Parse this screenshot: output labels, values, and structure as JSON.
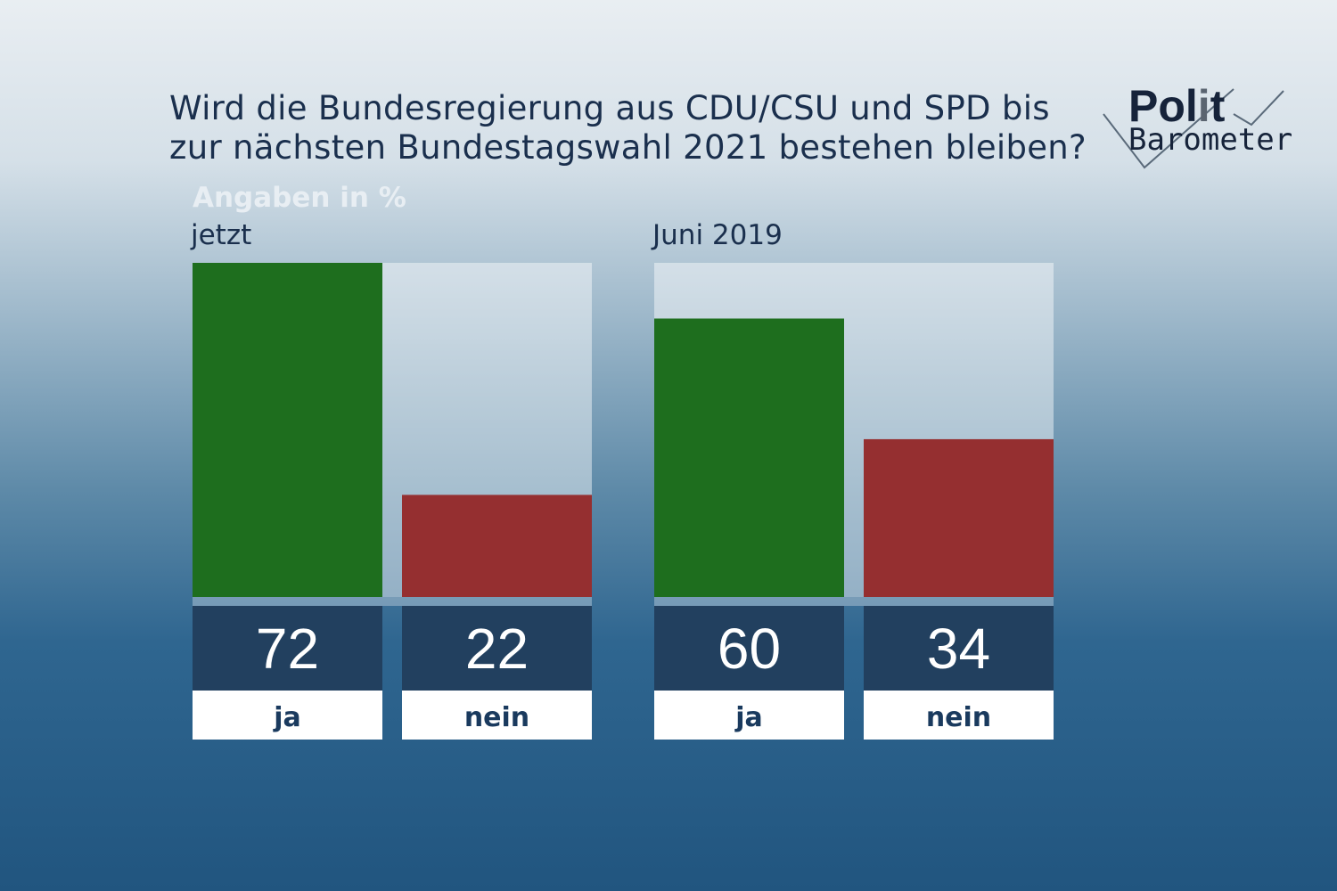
{
  "chart_data": {
    "type": "bar",
    "title": "Wird die Bundesregierung aus CDU/CSU und SPD bis zur nächsten Bundestagswahl 2021 bestehen bleiben?",
    "unit_label": "Angaben in %",
    "ylim": [
      0,
      72
    ],
    "groups": [
      {
        "name": "jetzt",
        "categories": [
          "ja",
          "nein"
        ],
        "values": [
          72,
          22
        ]
      },
      {
        "name": "Juni 2019",
        "categories": [
          "ja",
          "nein"
        ],
        "values": [
          60,
          34
        ]
      }
    ],
    "colors": {
      "ja": "#1e6e1e",
      "nein": "#952f30",
      "value_box": "#22405f",
      "label_box": "#ffffff"
    }
  },
  "logo": {
    "line1": "Polit",
    "line2": "Barometer"
  }
}
